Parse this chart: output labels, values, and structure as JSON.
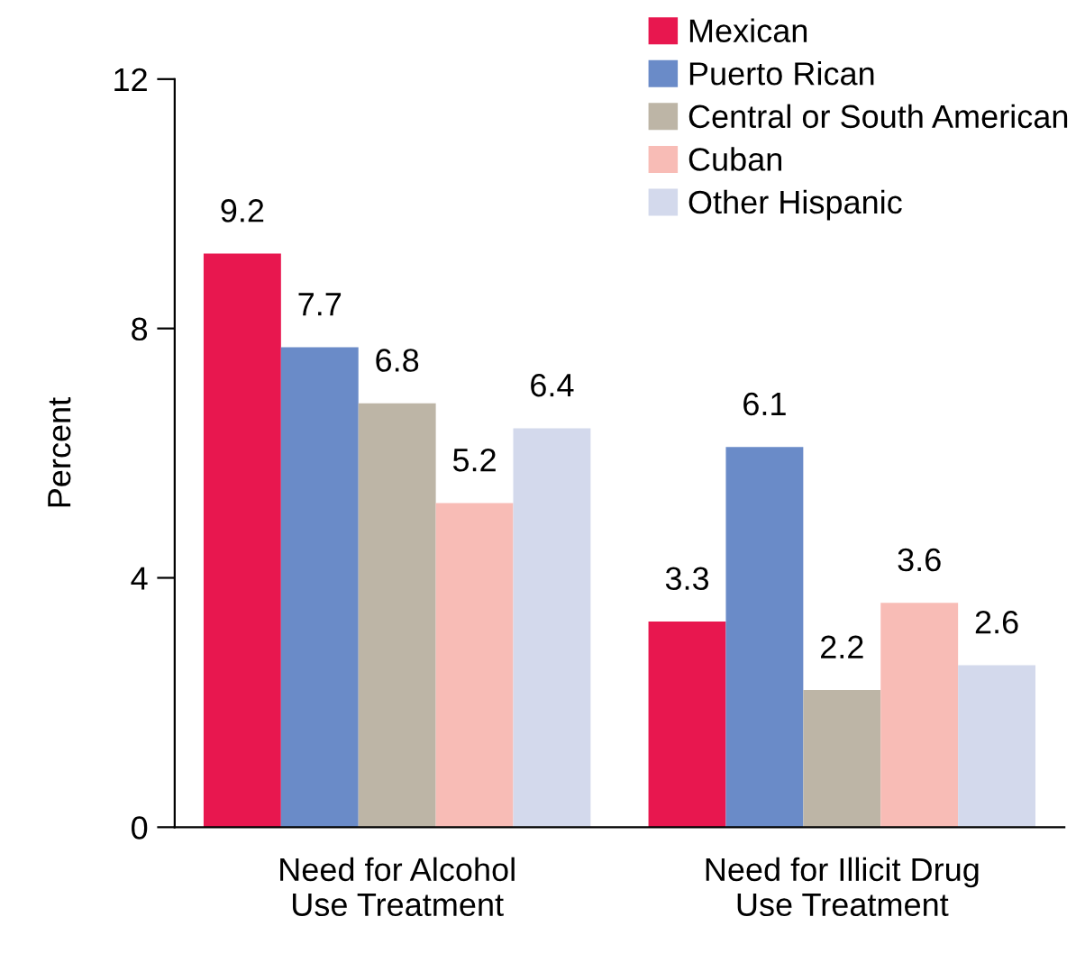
{
  "chart_data": {
    "type": "bar",
    "ylabel": "Percent",
    "categories": [
      "Need for Alcohol\nUse Treatment",
      "Need for Illicit Drug\nUse Treatment"
    ],
    "series": [
      {
        "name": "Mexican",
        "color": "#e8174f",
        "values": [
          9.2,
          3.3
        ]
      },
      {
        "name": "Puerto Rican",
        "color": "#6a8bc8",
        "values": [
          7.7,
          6.1
        ]
      },
      {
        "name": "Central or South American",
        "color": "#bdb5a6",
        "values": [
          6.8,
          2.2
        ]
      },
      {
        "name": "Cuban",
        "color": "#f8bcb6",
        "values": [
          5.2,
          3.6
        ]
      },
      {
        "name": "Other Hispanic",
        "color": "#d3d9ec",
        "values": [
          6.4,
          2.6
        ]
      }
    ],
    "ylim": [
      0,
      12
    ],
    "yticks": [
      0,
      4,
      8,
      12
    ],
    "data_labels": true,
    "legend": "top right",
    "grid": false
  }
}
